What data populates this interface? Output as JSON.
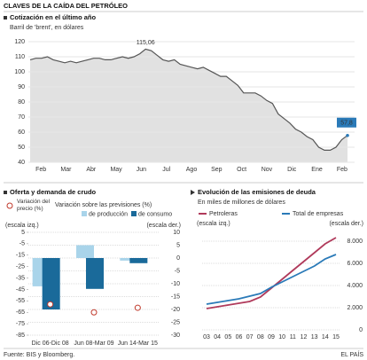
{
  "title": "CLAVES DE LA CAÍDA DEL PETRÓLEO",
  "source": "Fuente: BIS y Bloomberg.",
  "credit": "EL PAÍS",
  "chart_data": [
    {
      "type": "area",
      "title": "Cotización en el último año",
      "subtitle": "Barril de 'brent', en dólares",
      "x_labels": [
        "Feb",
        "Mar",
        "Abr",
        "May",
        "Jun",
        "Jul",
        "Ago",
        "Sep",
        "Oct",
        "Nov",
        "Dic",
        "Ene",
        "Feb"
      ],
      "values": [
        108,
        109,
        109,
        110,
        108,
        107,
        106,
        107,
        106,
        107,
        108,
        109,
        109,
        108,
        108,
        109,
        110,
        109,
        110,
        112,
        115.06,
        114,
        111,
        108,
        107,
        108,
        105,
        104,
        103,
        102,
        103,
        101,
        99,
        97,
        97,
        94,
        91,
        86,
        86,
        86,
        84,
        81,
        79,
        72,
        69,
        66,
        62,
        60,
        57,
        55,
        50,
        48,
        48,
        50,
        55,
        57.8
      ],
      "color": "#555555",
      "fill": "#dedede",
      "ylim": [
        40,
        120
      ],
      "yticks": [
        40,
        50,
        60,
        70,
        80,
        90,
        100,
        110,
        120
      ],
      "grid": true,
      "annotations": [
        {
          "label": "115,06",
          "value": 115.06
        },
        {
          "label": "57,8",
          "value": 57.8,
          "highlight": "#2a7ab8"
        }
      ]
    },
    {
      "type": "bar",
      "title": "Oferta y demanda de crudo",
      "legend_heading": "Variación sobre las previsiones (%)",
      "left_note": "(escala izq.)",
      "right_note": "(escala der.)",
      "categories": [
        "Dic 06-Dic 08",
        "Jun 08-Mar 09",
        "Jun 14-Mar 15"
      ],
      "series": [
        {
          "name": "de producción",
          "color": "#a9d4ea",
          "axis": "y2",
          "values": [
            -11,
            5,
            -1
          ]
        },
        {
          "name": "de consumo",
          "color": "#1a6a9a",
          "axis": "y2",
          "values": [
            -20,
            -12,
            -2
          ]
        },
        {
          "name": "Variación del precio (%)",
          "color": "#c0392b",
          "marker": "circle",
          "values": [
            -58,
            -65,
            -61
          ]
        }
      ],
      "ylim": [
        -85,
        5
      ],
      "yticks": [
        5,
        -5,
        -15,
        -25,
        -35,
        -45,
        -55,
        -65,
        -75,
        -85
      ],
      "y2lim": [
        -30,
        10
      ],
      "y2ticks": [
        10,
        5,
        0,
        -5,
        -10,
        -15,
        -20,
        -25,
        -30
      ],
      "grid": true
    },
    {
      "type": "line",
      "title": "Evolución de las emisiones de deuda",
      "subtitle": "En miles de millones de dólares",
      "left_note": "(escala izq.)",
      "right_note": "(escala der.)",
      "categories": [
        "03",
        "04",
        "05",
        "06",
        "07",
        "08",
        "09",
        "10",
        "11",
        "12",
        "13",
        "14",
        "15"
      ],
      "series": [
        {
          "name": "Petroleras",
          "color": "#b03a5b",
          "values": [
            192,
            208,
            224,
            240,
            256,
            296,
            376,
            456,
            536,
            616,
            696,
            776,
            832
          ]
        },
        {
          "name": "Total de empresas",
          "color": "#2a7ab8",
          "axis": "y2",
          "values": [
            2320,
            2480,
            2640,
            2800,
            3040,
            3280,
            3840,
            4320,
            4800,
            5280,
            5760,
            6400,
            6800
          ]
        }
      ],
      "ylim": [
        0,
        880
      ],
      "y2lim": [
        0,
        8800
      ],
      "y2ticks": [
        {
          "value": 8000,
          "label": "8.000"
        },
        {
          "value": 6000,
          "label": "6.000"
        },
        {
          "value": 4000,
          "label": "4.000"
        },
        {
          "value": 2000,
          "label": "2.000"
        },
        0
      ],
      "grid": true
    }
  ]
}
